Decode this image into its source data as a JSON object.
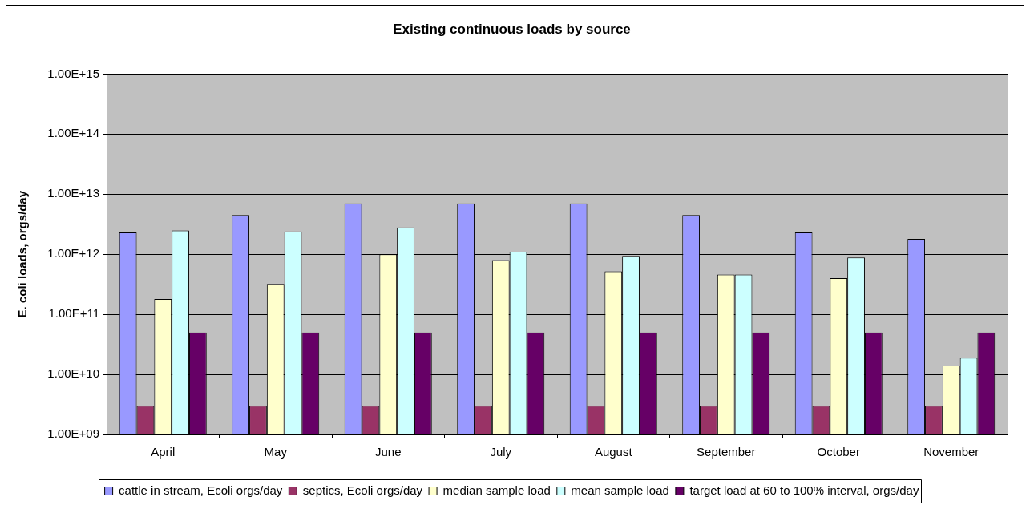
{
  "chart_data": {
    "type": "bar",
    "title": "Existing continuous loads by source",
    "ylabel": "E. coli loads, orgs/day",
    "categories": [
      "April",
      "May",
      "June",
      "July",
      "August",
      "September",
      "October",
      "November"
    ],
    "series": [
      {
        "name": "cattle in stream, Ecoli orgs/day",
        "color": "#9999ff",
        "values": [
          2300000000000.0,
          4500000000000.0,
          7000000000000.0,
          7000000000000.0,
          7000000000000.0,
          4500000000000.0,
          2300000000000.0,
          1800000000000.0
        ]
      },
      {
        "name": "septics, Ecoli orgs/day",
        "color": "#993366",
        "values": [
          3000000000.0,
          3000000000.0,
          3000000000.0,
          3000000000.0,
          3000000000.0,
          3000000000.0,
          3000000000.0,
          3000000000.0
        ]
      },
      {
        "name": "median sample load",
        "color": "#ffffcc",
        "values": [
          180000000000.0,
          320000000000.0,
          1000000000000.0,
          800000000000.0,
          520000000000.0,
          460000000000.0,
          400000000000.0,
          14000000000.0
        ]
      },
      {
        "name": "mean sample load",
        "color": "#ccffff",
        "values": [
          2500000000000.0,
          2400000000000.0,
          2800000000000.0,
          1100000000000.0,
          940000000000.0,
          460000000000.0,
          880000000000.0,
          19000000000.0
        ]
      },
      {
        "name": "target load at 60 to 100% interval, orgs/day",
        "color": "#660066",
        "values": [
          50000000000.0,
          50000000000.0,
          50000000000.0,
          50000000000.0,
          50000000000.0,
          50000000000.0,
          50000000000.0,
          50000000000.0
        ]
      }
    ],
    "ylim": [
      1000000000.0,
      1000000000000000.0
    ],
    "yticks": [
      {
        "value": 1000000000.0,
        "label": "1.00E+09"
      },
      {
        "value": 10000000000.0,
        "label": "1.00E+10"
      },
      {
        "value": 100000000000.0,
        "label": "1.00E+11"
      },
      {
        "value": 1000000000000.0,
        "label": "1.00E+12"
      },
      {
        "value": 10000000000000.0,
        "label": "1.00E+13"
      },
      {
        "value": 100000000000000.0,
        "label": "1.00E+14"
      },
      {
        "value": 1000000000000000.0,
        "label": "1.00E+15"
      }
    ],
    "log": true,
    "grid": "y",
    "legend": "bottom"
  }
}
